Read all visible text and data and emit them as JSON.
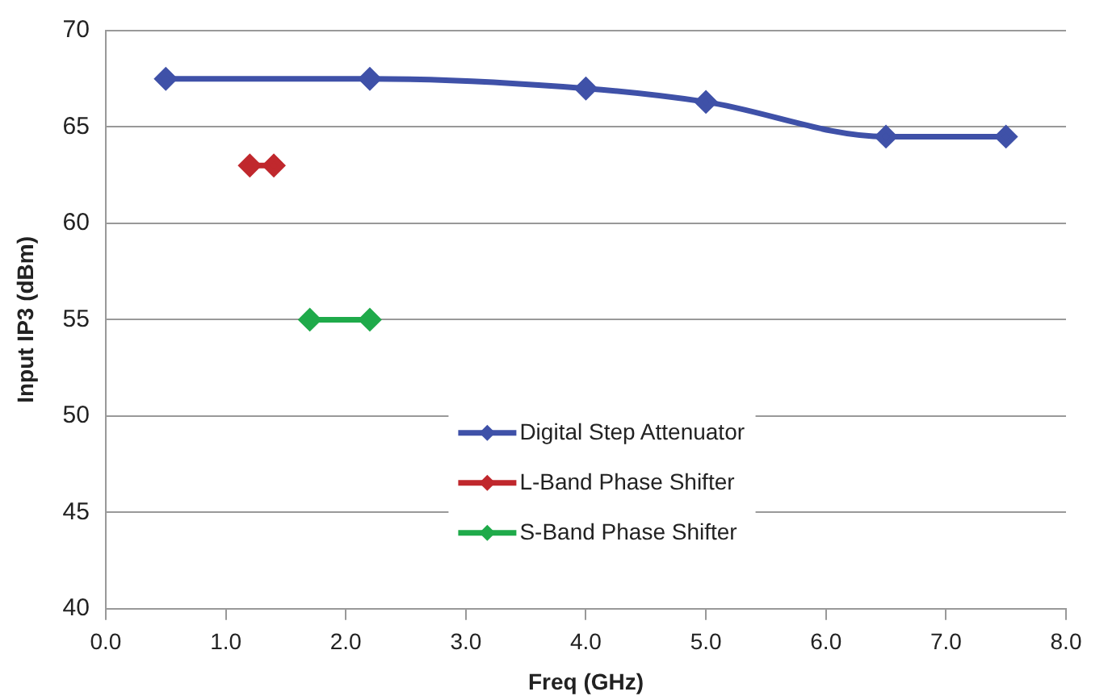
{
  "chart_data": {
    "type": "line",
    "xlabel": "Freq (GHz)",
    "ylabel": "Input IP3 (dBm)",
    "series": [
      {
        "name": "Digital Step Attenuator",
        "color": "#3f51a8",
        "x": [
          0.5,
          2.2,
          4.0,
          5.0,
          6.5,
          7.5
        ],
        "values": [
          67.5,
          67.5,
          67.0,
          66.3,
          64.5,
          64.5
        ]
      },
      {
        "name": "L-Band Phase Shifter",
        "color": "#c0282d",
        "x": [
          1.2,
          1.4
        ],
        "values": [
          63,
          63
        ]
      },
      {
        "name": "S-Band Phase Shifter",
        "color": "#1faa4a",
        "x": [
          1.7,
          2.2
        ],
        "values": [
          55,
          55
        ]
      }
    ],
    "xlim": [
      0,
      8
    ],
    "xticks": [
      {
        "value": 0,
        "label": "0.0"
      },
      {
        "value": 1,
        "label": "1.0"
      },
      {
        "value": 2,
        "label": "2.0"
      },
      {
        "value": 3,
        "label": "3.0"
      },
      {
        "value": 4,
        "label": "4.0"
      },
      {
        "value": 5,
        "label": "5.0"
      },
      {
        "value": 6,
        "label": "6.0"
      },
      {
        "value": 7,
        "label": "7.0"
      },
      {
        "value": 8,
        "label": "8.0"
      }
    ],
    "ylim": [
      40,
      70
    ],
    "yticks": [
      40,
      45,
      50,
      55,
      60,
      65,
      70
    ],
    "grid": "y",
    "legend": "bottom",
    "marker": "diamond",
    "line_style": "solid"
  }
}
